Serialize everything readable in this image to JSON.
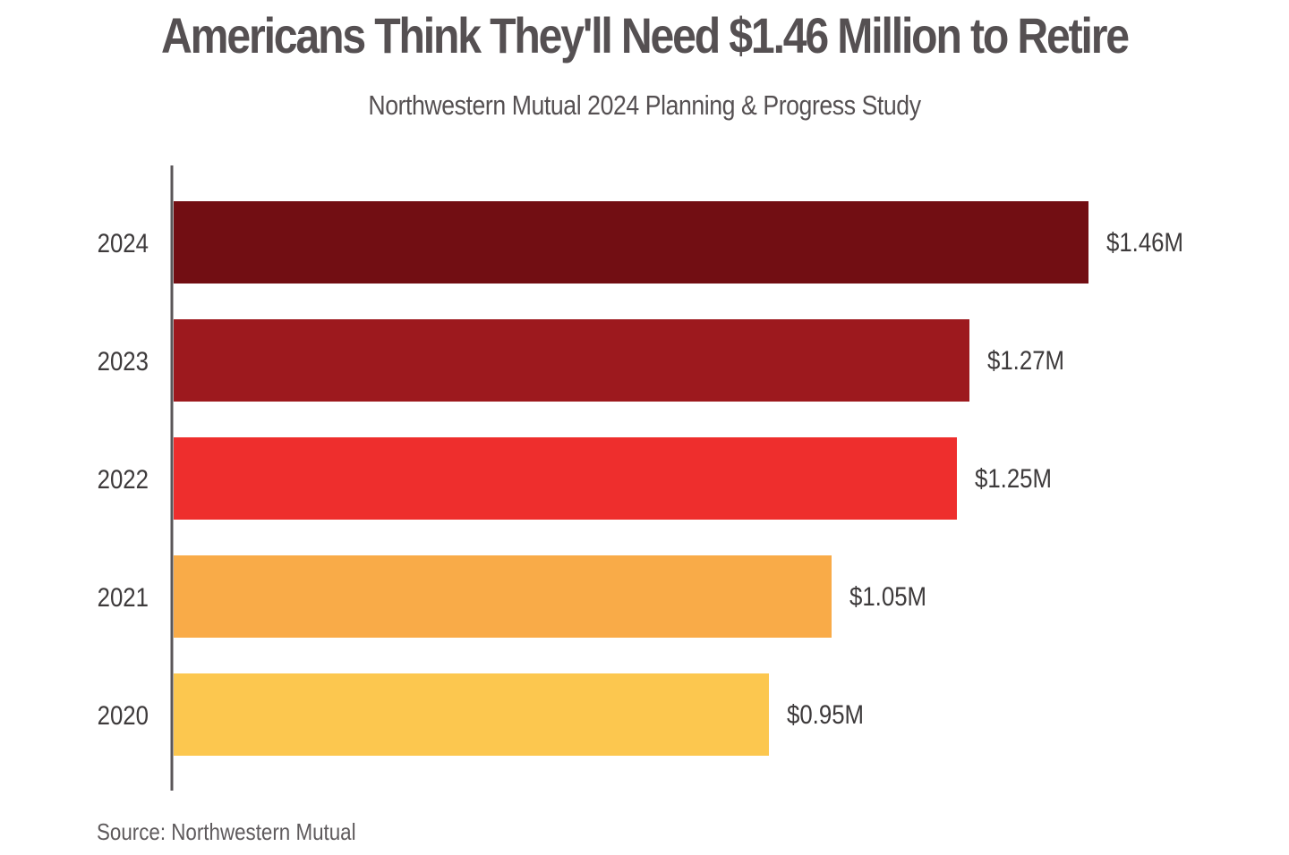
{
  "header": {
    "title": "Americans Think They'll Need $1.46 Million to Retire",
    "subtitle": "Northwestern Mutual 2024 Planning & Progress Study"
  },
  "footer": {
    "source": "Source: Northwestern Mutual"
  },
  "chart_data": {
    "type": "bar",
    "orientation": "horizontal",
    "title": "Americans Think They'll Need $1.46 Million to Retire",
    "subtitle": "Northwestern Mutual 2024 Planning & Progress Study",
    "xlabel": "",
    "ylabel": "",
    "grid": false,
    "legend": "none",
    "categories": [
      "2024",
      "2023",
      "2022",
      "2021",
      "2020"
    ],
    "values": [
      1.46,
      1.27,
      1.25,
      1.05,
      0.95
    ],
    "value_labels": [
      "$1.46M",
      "$1.27M",
      "$1.25M",
      "$1.05M",
      "$0.95M"
    ],
    "colors": [
      "#720e13",
      "#9d191e",
      "#ee2e2d",
      "#f9ab48",
      "#fcc74f"
    ],
    "xlim": [
      0,
      1.46
    ]
  }
}
